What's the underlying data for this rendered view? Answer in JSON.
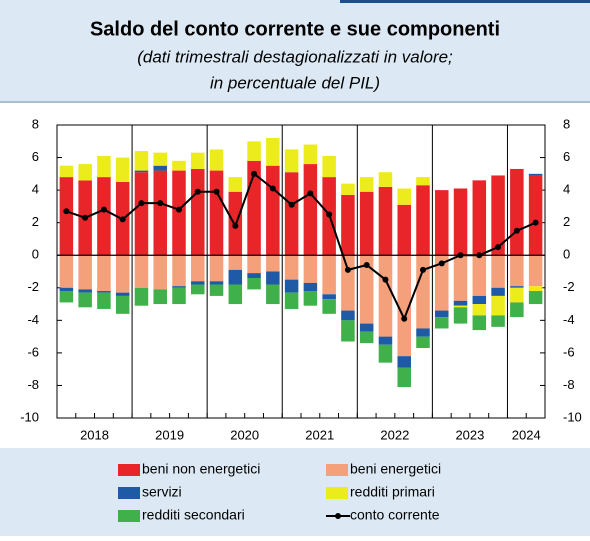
{
  "chart_data": {
    "type": "bar",
    "title": "Saldo del conto corrente e sue componenti",
    "subtitle": [
      "(dati trimestrali destagionalizzati in valore;",
      "in percentuale del PIL)"
    ],
    "categories": [
      "2018",
      "2018",
      "2018",
      "2018",
      "2019",
      "2019",
      "2019",
      "2019",
      "2020",
      "2020",
      "2020",
      "2020",
      "2021",
      "2021",
      "2021",
      "2021",
      "2022",
      "2022",
      "2022",
      "2022",
      "2023",
      "2023",
      "2023",
      "2023",
      "2024",
      "2024"
    ],
    "ylim": [
      -10,
      8
    ],
    "yticks": [
      -10,
      -8,
      -6,
      -4,
      -2,
      0,
      2,
      4,
      6,
      8
    ],
    "y2lim": [
      -10,
      8
    ],
    "y2ticks": [
      -10,
      -8,
      -6,
      -4,
      -2,
      0,
      2,
      4,
      6,
      8
    ],
    "series": [
      {
        "name": "beni non energetici",
        "color": "#e8262a",
        "values": [
          4.8,
          4.6,
          4.8,
          4.5,
          5.1,
          5.2,
          5.2,
          5.3,
          5.2,
          3.9,
          5.8,
          5.5,
          5.1,
          5.6,
          4.8,
          3.7,
          3.9,
          4.2,
          3.1,
          4.3,
          4.0,
          4.1,
          4.6,
          4.9,
          5.3,
          4.9
        ]
      },
      {
        "name": "beni energetici",
        "color": "#f4a07a",
        "values": [
          -2.0,
          -2.1,
          -2.2,
          -2.3,
          -2.0,
          -2.1,
          -1.9,
          -1.6,
          -1.6,
          -0.9,
          -1.1,
          -1.0,
          -1.5,
          -1.7,
          -2.4,
          -3.4,
          -4.2,
          -5.0,
          -6.2,
          -4.5,
          -3.4,
          -2.8,
          -2.5,
          -2.0,
          -1.9,
          -1.9
        ]
      },
      {
        "name": "servizi",
        "color": "#1f5aa6",
        "values": [
          -0.2,
          -0.2,
          -0.1,
          -0.2,
          0.1,
          0.3,
          -0.1,
          -0.2,
          -0.2,
          -0.9,
          -0.3,
          -0.8,
          -0.8,
          -0.5,
          -0.3,
          -0.6,
          -0.5,
          -0.5,
          -0.7,
          -0.5,
          -0.4,
          -0.3,
          -0.5,
          -0.5,
          -0.1,
          0.1
        ]
      },
      {
        "name": "redditi primari",
        "color": "#ecec1c",
        "values": [
          0.7,
          1.0,
          1.3,
          1.5,
          1.2,
          0.8,
          0.6,
          1.0,
          1.3,
          0.9,
          1.2,
          1.7,
          1.4,
          1.2,
          1.3,
          0.7,
          0.9,
          0.9,
          1.0,
          0.5,
          0,
          -0.1,
          -0.7,
          -1.2,
          -0.9,
          -0.3
        ]
      },
      {
        "name": "redditi secondari",
        "color": "#3fb04a",
        "values": [
          -0.7,
          -0.9,
          -1.0,
          -1.1,
          -1.1,
          -0.9,
          -1.0,
          -0.6,
          -0.7,
          -1.2,
          -0.7,
          -1.2,
          -1.0,
          -0.9,
          -0.9,
          -1.3,
          -0.7,
          -1.1,
          -1.2,
          -0.7,
          -0.7,
          -1.0,
          -0.9,
          -0.7,
          -0.9,
          -0.8
        ]
      },
      {
        "name": "conto corrente",
        "type": "line",
        "color": "#000000",
        "values": [
          2.7,
          2.3,
          2.8,
          2.2,
          3.2,
          3.2,
          2.8,
          3.9,
          3.9,
          1.8,
          5.0,
          4.1,
          3.1,
          3.8,
          2.5,
          -0.9,
          -0.6,
          -1.5,
          -3.9,
          -0.9,
          -0.5,
          0.0,
          0.0,
          0.5,
          1.5,
          2.0
        ]
      }
    ]
  }
}
